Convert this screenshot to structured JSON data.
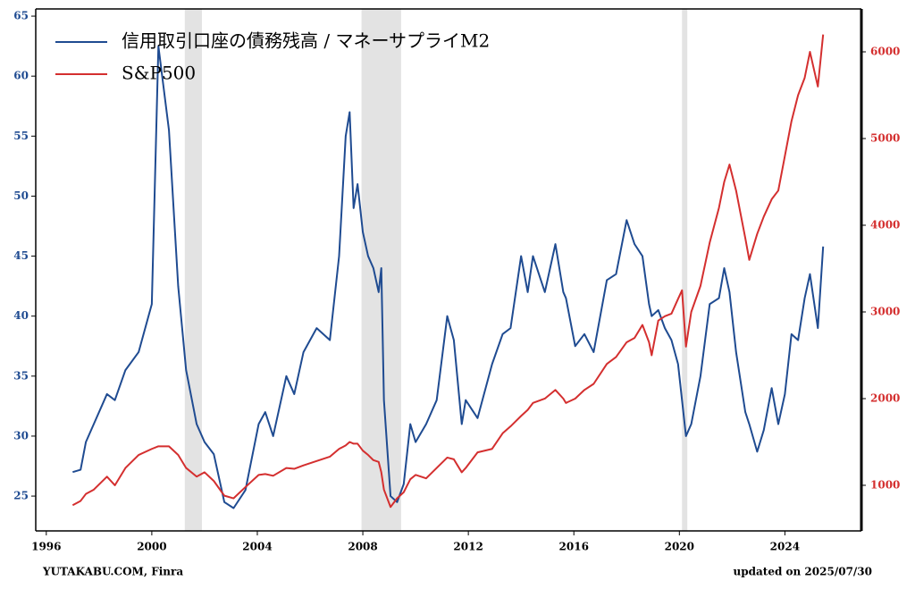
{
  "chart_data": {
    "type": "line",
    "x": [
      1997.0,
      1997.3,
      1997.5,
      1997.8,
      1998.3,
      1998.6,
      1999.0,
      1999.5,
      2000.0,
      2000.25,
      2000.65,
      2001.0,
      2001.3,
      2001.7,
      2002.0,
      2002.35,
      2002.75,
      2003.1,
      2003.55,
      2004.05,
      2004.3,
      2004.6,
      2005.1,
      2005.4,
      2005.75,
      2006.25,
      2006.75,
      2007.1,
      2007.35,
      2007.5,
      2007.65,
      2007.8,
      2008.0,
      2008.2,
      2008.4,
      2008.6,
      2008.7,
      2008.8,
      2009.05,
      2009.3,
      2009.55,
      2009.8,
      2010.0,
      2010.4,
      2010.8,
      2011.2,
      2011.45,
      2011.75,
      2011.9,
      2012.35,
      2012.9,
      2013.3,
      2013.6,
      2014.0,
      2014.25,
      2014.45,
      2014.9,
      2015.3,
      2015.6,
      2015.7,
      2016.05,
      2016.4,
      2016.75,
      2017.25,
      2017.6,
      2018.0,
      2018.3,
      2018.6,
      2018.85,
      2018.95,
      2019.2,
      2019.45,
      2019.7,
      2019.95,
      2020.1,
      2020.25,
      2020.45,
      2020.8,
      2021.15,
      2021.5,
      2021.7,
      2021.9,
      2022.15,
      2022.5,
      2022.65,
      2022.95,
      2023.2,
      2023.5,
      2023.75,
      2024.0,
      2024.25,
      2024.5,
      2024.75,
      2024.95,
      2025.25,
      2025.45
    ],
    "series": [
      {
        "name": "信用取引口座の債務残高 / マネーサプライM2",
        "color": "#1f4b91",
        "axis": "y",
        "values": [
          27,
          27.2,
          29.5,
          31,
          33.5,
          33,
          35.5,
          37,
          41,
          62.5,
          55.5,
          42.5,
          35.5,
          31,
          29.5,
          28.5,
          24.5,
          24,
          25.5,
          31,
          32,
          30,
          35,
          33.5,
          37,
          39,
          38,
          45,
          55,
          57,
          49,
          51,
          47,
          45,
          44,
          42,
          44,
          33,
          25,
          24.5,
          26,
          31,
          29.5,
          31,
          33,
          40,
          38,
          31,
          33,
          31.5,
          36,
          38.5,
          39,
          45,
          42,
          45,
          42,
          46,
          42,
          41.5,
          37.5,
          38.5,
          37,
          43,
          43.5,
          48,
          46,
          45,
          41,
          40,
          40.5,
          39,
          38,
          36,
          33,
          30,
          31,
          35,
          41,
          41.5,
          44,
          42,
          37,
          32,
          31,
          28.7,
          30.5,
          34,
          31,
          33.5,
          38.5,
          38,
          41.5,
          43.5,
          39,
          45.8
        ]
      },
      {
        "name": "S&P500",
        "color": "#d42f2f",
        "axis": "y2",
        "values": [
          770,
          820,
          900,
          950,
          1100,
          1000,
          1200,
          1350,
          1420,
          1450,
          1450,
          1350,
          1200,
          1100,
          1150,
          1050,
          880,
          850,
          980,
          1120,
          1130,
          1110,
          1200,
          1190,
          1230,
          1280,
          1330,
          1420,
          1460,
          1500,
          1480,
          1480,
          1400,
          1350,
          1290,
          1270,
          1150,
          950,
          750,
          850,
          920,
          1070,
          1120,
          1080,
          1200,
          1320,
          1300,
          1150,
          1200,
          1380,
          1420,
          1600,
          1680,
          1800,
          1870,
          1950,
          2000,
          2100,
          2000,
          1950,
          2000,
          2100,
          2170,
          2400,
          2480,
          2650,
          2700,
          2850,
          2650,
          2500,
          2900,
          2950,
          2980,
          3150,
          3250,
          2600,
          3000,
          3300,
          3800,
          4200,
          4500,
          4700,
          4400,
          3850,
          3600,
          3900,
          4100,
          4300,
          4400,
          4800,
          5200,
          5500,
          5700,
          6000,
          5600,
          6200
        ]
      }
    ],
    "xlim": [
      1995.6,
      2026.9
    ],
    "xticks": [
      1996,
      2000,
      2004,
      2008,
      2012,
      2016,
      2020,
      2024
    ],
    "ylim": [
      22.1,
      65.6
    ],
    "yticks": [
      25,
      30,
      35,
      40,
      45,
      50,
      55,
      60,
      65
    ],
    "y2lim": [
      474,
      6495
    ],
    "y2ticks": [
      1000,
      2000,
      3000,
      4000,
      5000,
      6000
    ],
    "shaded_periods": [
      [
        2001.25,
        2001.9
      ],
      [
        2007.95,
        2009.45
      ],
      [
        2020.1,
        2020.3
      ]
    ],
    "source": "YUTAKABU.COM, Finra",
    "updated": "updated on 2025/07/30",
    "legend": "upper left"
  }
}
